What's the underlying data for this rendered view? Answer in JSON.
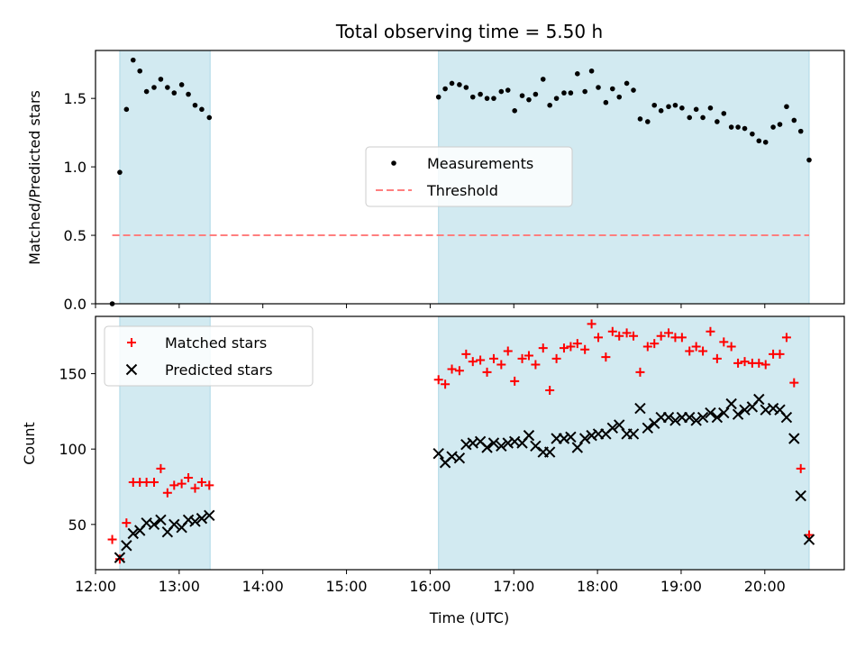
{
  "title": "Total observing time = 5.50 h",
  "colors": {
    "shade": "#add8e6",
    "measurements": "#000000",
    "threshold": "#ff7f7f",
    "matched": "#ff0000",
    "predicted": "#000000"
  },
  "chart_data": [
    {
      "type": "scatter",
      "ylabel": "Matched/Predicted stars",
      "xlabel": "",
      "xlim": [
        12.0,
        20.95
      ],
      "ylim": [
        0,
        1.85
      ],
      "xticks": [
        12,
        13,
        14,
        15,
        16,
        17,
        18,
        19,
        20
      ],
      "yticks": [
        0.0,
        0.5,
        1.0,
        1.5
      ],
      "ytick_labels": [
        "0.0",
        "0.5",
        "1.0",
        "1.5"
      ],
      "shaded_intervals": [
        [
          12.29,
          13.37
        ],
        [
          16.1,
          20.53
        ]
      ],
      "legend": {
        "placement": "center",
        "entries": [
          "Measurements",
          "Threshold"
        ]
      },
      "threshold": {
        "name": "Threshold",
        "y": 0.5,
        "x": [
          12.2,
          20.53
        ]
      },
      "series": [
        {
          "name": "Measurements",
          "x": [
            12.2,
            12.29,
            12.37,
            12.45,
            12.53,
            12.61,
            12.7,
            12.78,
            12.86,
            12.94,
            13.03,
            13.11,
            13.19,
            13.27,
            13.36,
            16.1,
            16.18,
            16.26,
            16.35,
            16.43,
            16.51,
            16.6,
            16.68,
            16.76,
            16.85,
            16.93,
            17.01,
            17.1,
            17.18,
            17.26,
            17.35,
            17.43,
            17.51,
            17.6,
            17.68,
            17.76,
            17.85,
            17.93,
            18.01,
            18.1,
            18.18,
            18.26,
            18.35,
            18.43,
            18.51,
            18.6,
            18.68,
            18.76,
            18.85,
            18.93,
            19.01,
            19.1,
            19.18,
            19.26,
            19.35,
            19.43,
            19.51,
            19.6,
            19.68,
            19.76,
            19.85,
            19.93,
            20.01,
            20.1,
            20.18,
            20.26,
            20.35,
            20.43,
            20.53
          ],
          "y": [
            0.0,
            0.96,
            1.42,
            1.78,
            1.7,
            1.55,
            1.58,
            1.64,
            1.58,
            1.54,
            1.6,
            1.53,
            1.45,
            1.42,
            1.36,
            1.51,
            1.57,
            1.61,
            1.6,
            1.58,
            1.51,
            1.53,
            1.5,
            1.5,
            1.55,
            1.56,
            1.41,
            1.52,
            1.49,
            1.53,
            1.64,
            1.45,
            1.5,
            1.54,
            1.54,
            1.68,
            1.55,
            1.7,
            1.58,
            1.47,
            1.57,
            1.51,
            1.61,
            1.56,
            1.35,
            1.33,
            1.45,
            1.41,
            1.44,
            1.45,
            1.43,
            1.36,
            1.42,
            1.36,
            1.43,
            1.33,
            1.39,
            1.29,
            1.29,
            1.28,
            1.24,
            1.19,
            1.18,
            1.29,
            1.31,
            1.44,
            1.34,
            1.26,
            1.05
          ]
        }
      ]
    },
    {
      "type": "scatter",
      "ylabel": "Count",
      "xlabel": "Time (UTC)",
      "xlim": [
        12.0,
        20.95
      ],
      "ylim": [
        20,
        188
      ],
      "xticks": [
        12,
        13,
        14,
        15,
        16,
        17,
        18,
        19,
        20
      ],
      "xtick_labels": [
        "12:00",
        "13:00",
        "14:00",
        "15:00",
        "16:00",
        "17:00",
        "18:00",
        "19:00",
        "20:00"
      ],
      "yticks": [
        50,
        100,
        150
      ],
      "ytick_labels": [
        "50",
        "100",
        "150"
      ],
      "shaded_intervals": [
        [
          12.29,
          13.37
        ],
        [
          16.1,
          20.53
        ]
      ],
      "legend": {
        "placement": "upper left",
        "entries": [
          "Matched stars",
          "Predicted stars"
        ]
      },
      "series": [
        {
          "name": "Matched stars",
          "marker": "plus",
          "x": [
            12.2,
            12.29,
            12.37,
            12.45,
            12.53,
            12.61,
            12.7,
            12.78,
            12.86,
            12.94,
            13.03,
            13.11,
            13.19,
            13.27,
            13.36,
            16.1,
            16.18,
            16.26,
            16.35,
            16.43,
            16.51,
            16.6,
            16.68,
            16.76,
            16.85,
            16.93,
            17.01,
            17.1,
            17.18,
            17.26,
            17.35,
            17.43,
            17.51,
            17.6,
            17.68,
            17.76,
            17.85,
            17.93,
            18.01,
            18.1,
            18.18,
            18.26,
            18.35,
            18.43,
            18.51,
            18.6,
            18.68,
            18.76,
            18.85,
            18.93,
            19.01,
            19.1,
            19.18,
            19.26,
            19.35,
            19.43,
            19.51,
            19.6,
            19.68,
            19.76,
            19.85,
            19.93,
            20.01,
            20.1,
            20.18,
            20.26,
            20.35,
            20.43,
            20.53
          ],
          "y": [
            40,
            27,
            51,
            78,
            78,
            78,
            78,
            87,
            71,
            76,
            77,
            81,
            74,
            78,
            76,
            146,
            143,
            153,
            152,
            163,
            158,
            159,
            151,
            160,
            156,
            165,
            145,
            160,
            162,
            156,
            167,
            139,
            160,
            167,
            168,
            170,
            166,
            183,
            174,
            161,
            178,
            175,
            177,
            175,
            151,
            168,
            170,
            175,
            177,
            174,
            174,
            165,
            168,
            165,
            178,
            160,
            171,
            168,
            157,
            158,
            157,
            157,
            156,
            163,
            163,
            174,
            144,
            87,
            43
          ]
        },
        {
          "name": "Predicted stars",
          "marker": "x",
          "x": [
            12.29,
            12.37,
            12.45,
            12.53,
            12.61,
            12.7,
            12.78,
            12.86,
            12.94,
            13.03,
            13.11,
            13.19,
            13.27,
            13.36,
            16.1,
            16.18,
            16.26,
            16.35,
            16.43,
            16.51,
            16.6,
            16.68,
            16.76,
            16.85,
            16.93,
            17.01,
            17.1,
            17.18,
            17.26,
            17.35,
            17.43,
            17.51,
            17.6,
            17.68,
            17.76,
            17.85,
            17.93,
            18.01,
            18.1,
            18.18,
            18.26,
            18.35,
            18.43,
            18.51,
            18.6,
            18.68,
            18.76,
            18.85,
            18.93,
            19.01,
            19.1,
            19.18,
            19.26,
            19.35,
            19.43,
            19.51,
            19.6,
            19.68,
            19.76,
            19.85,
            19.93,
            20.01,
            20.1,
            20.18,
            20.26,
            20.35,
            20.43,
            20.53
          ],
          "y": [
            28,
            36,
            44,
            46,
            51,
            50,
            53,
            45,
            50,
            48,
            53,
            52,
            54,
            56,
            97,
            91,
            95,
            94,
            103,
            104,
            105,
            101,
            104,
            102,
            104,
            105,
            104,
            109,
            102,
            98,
            98,
            107,
            107,
            108,
            101,
            107,
            109,
            110,
            110,
            114,
            116,
            110,
            110,
            127,
            114,
            117,
            121,
            121,
            119,
            121,
            121,
            119,
            121,
            124,
            121,
            124,
            130,
            123,
            126,
            128,
            133,
            126,
            127,
            126,
            121,
            107,
            69,
            40
          ]
        }
      ]
    }
  ]
}
